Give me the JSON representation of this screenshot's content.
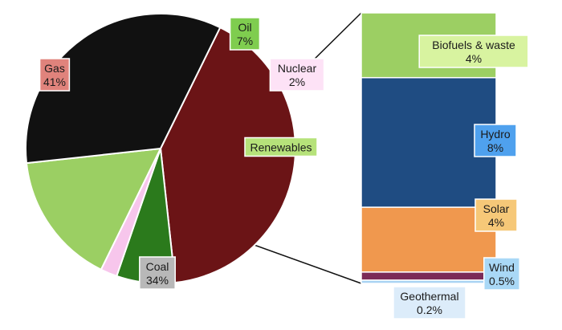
{
  "chart_data": {
    "type": "pie",
    "title": "",
    "pie": {
      "slices": [
        {
          "label": "Gas",
          "pct": "41%",
          "value": 41,
          "color": "#6b1416",
          "label_bg": "#e0837c",
          "label_border": "#ffffff"
        },
        {
          "label": "Oil",
          "pct": "7%",
          "value": 7,
          "color": "#2b7a1c",
          "label_bg": "#7fcd4f",
          "label_border": "#ffffff"
        },
        {
          "label": "Nuclear",
          "pct": "2%",
          "value": 2,
          "color": "#f7c6ec",
          "label_bg": "#fde2f6",
          "label_border": "#ffffff"
        },
        {
          "label": "Renewables",
          "pct": "",
          "value": 16,
          "color": "#9bcf63",
          "label_bg": "#b6e27a",
          "label_border": "#ffffff"
        },
        {
          "label": "Coal",
          "pct": "34%",
          "value": 34,
          "color": "#111111",
          "label_bg": "#b8b8b8",
          "label_border": "#ffffff"
        }
      ]
    },
    "breakdown": {
      "of": "Renewables",
      "segments": [
        {
          "label": "Biofuels & waste",
          "pct": "4%",
          "value": 4,
          "color": "#9ccf63",
          "label_bg": "#d8f3a0",
          "label_border": "#ffffff"
        },
        {
          "label": "Hydro",
          "pct": "8%",
          "value": 8,
          "color": "#1f4c82",
          "label_bg": "#4fa1ee",
          "label_border": "#ffffff"
        },
        {
          "label": "Solar",
          "pct": "4%",
          "value": 4,
          "color": "#f0984e",
          "label_bg": "#f6c878",
          "label_border": "#ffffff"
        },
        {
          "label": "Wind",
          "pct": "0.5%",
          "value": 0.5,
          "color": "#7b2a57",
          "label_bg": "#a9d8f6",
          "label_border": "#ffffff"
        },
        {
          "label": "Geothermal",
          "pct": "0.2%",
          "value": 0.2,
          "color": "#a9d3f3",
          "label_bg": "#dcecfa",
          "label_border": "#ffffff"
        }
      ]
    }
  }
}
